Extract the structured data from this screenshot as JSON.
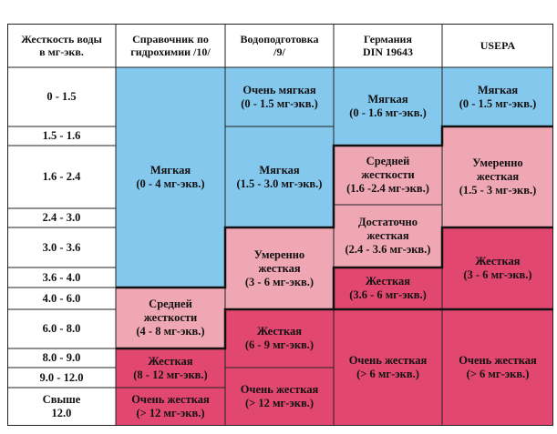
{
  "headers": {
    "col0": "Жесткость воды\nв мг-экв.",
    "col1": "Справочник по\nгидрохимии /10/",
    "col2": "Водоподготовка\n/9/",
    "col3": "Германия\nDIN 19643",
    "col4": "USEPA"
  },
  "ranges": [
    "0 - 1.5",
    "1.5 - 1.6",
    "1.6 - 2.4",
    "2.4 - 3.0",
    "3.0 - 3.6",
    "3.6 - 4.0",
    "4.0 - 6.0",
    "6.0 - 8.0",
    "8.0 - 9.0",
    "9.0 - 12.0",
    "Свыше\n12.0"
  ],
  "spravochnik": [
    "Мягкая\n(0 - 4 мг-экв.)",
    "Средней\nжесткости\n(4 - 8 мг-экв.)",
    "Жесткая\n(8 - 12 мг-экв.)",
    "Очень жесткая\n(> 12 мг-экв.)"
  ],
  "vodopodgotovka": [
    "Очень мягкая\n(0 - 1.5 мг-экв.)",
    "Мягкая\n(1.5 - 3.0 мг-экв.)",
    "Умеренно\nжесткая\n(3 - 6 мг-экв.)",
    "Жесткая\n(6 - 9 мг-экв.)",
    "Очень жесткая\n(> 12 мг-экв.)"
  ],
  "din": [
    "Мягкая\n(0 - 1.6 мг-экв.)",
    "Средней\nжесткости\n(1.6 -2.4 мг-экв.)",
    "Достаточно\nжесткая\n(2.4 - 3.6 мг-экв.)",
    "Жесткая\n(3.6 - 6 мг-экв.)",
    "Очень жесткая\n(> 6 мг-экв.)"
  ],
  "usepa": [
    "Мягкая\n(0 - 1.5 мг-экв.)",
    "Умеренно\nжесткая\n(1.5 - 3 мг-экв.)",
    "Жесткая\n(3 - 6 мг-экв.)",
    "Очень жесткая\n(> 6 мг-экв.)"
  ],
  "colors": {
    "soft": "#85c8ee",
    "medium": "#f0a7b4",
    "hard": "#e2486f"
  }
}
